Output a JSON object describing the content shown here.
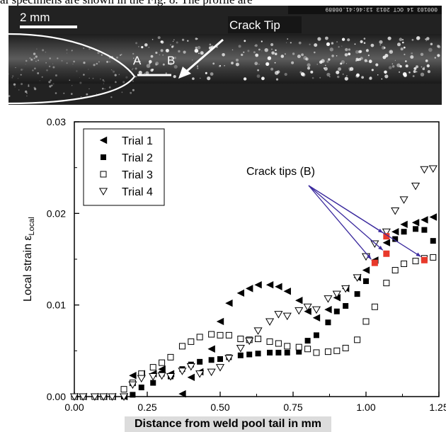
{
  "caption_fragment": "al specimens are shown in the Fig. 8.  The profile are",
  "micrograph": {
    "scale_bar_label": "2 mm",
    "crack_tip_label": "Crack Tip",
    "marker_a": "A",
    "marker_b": "B",
    "timestamp": "000103  14 OCT 2013  13:46:41.00889"
  },
  "chart_data": {
    "type": "scatter",
    "xlabel": "Distance from weld pool tail in mm",
    "ylabel": "Local strain ε",
    "ylabel_sub": "Local",
    "xlim": [
      0,
      1.25
    ],
    "ylim": [
      0,
      0.03
    ],
    "x_ticks": [
      "0.00",
      "0.25",
      "0.50",
      "0.75",
      "1.00",
      "1.25"
    ],
    "y_ticks": [
      "0.00",
      "0.01",
      "0.02",
      "0.03"
    ],
    "legend_position": "top-left",
    "annotation": "Crack tips (B)",
    "annotation_color": "#3b2a9e",
    "highlight_color": "#e8392b",
    "series": [
      {
        "name": "Trial 1",
        "marker": "triangle-left",
        "points": [
          [
            0.0,
            0.0
          ],
          [
            0.03,
            0.0
          ],
          [
            0.07,
            0.0
          ],
          [
            0.1,
            0.0
          ],
          [
            0.13,
            0.0
          ],
          [
            0.17,
            0.0
          ],
          [
            0.2,
            0.0023
          ],
          [
            0.23,
            0.0025
          ],
          [
            0.27,
            0.0025
          ],
          [
            0.3,
            0.003
          ],
          [
            0.33,
            0.0025
          ],
          [
            0.37,
            0.0003
          ],
          [
            0.4,
            0.0021
          ],
          [
            0.43,
            0.0027
          ],
          [
            0.47,
            0.0052
          ],
          [
            0.5,
            0.0082
          ],
          [
            0.53,
            0.0102
          ],
          [
            0.57,
            0.0113
          ],
          [
            0.6,
            0.0118
          ],
          [
            0.63,
            0.0122
          ],
          [
            0.67,
            0.0122
          ],
          [
            0.7,
            0.012
          ],
          [
            0.73,
            0.0115
          ],
          [
            0.77,
            0.0105
          ],
          [
            0.8,
            0.0093
          ],
          [
            0.83,
            0.0086
          ],
          [
            0.87,
            0.0095
          ],
          [
            0.9,
            0.0108
          ],
          [
            0.93,
            0.0118
          ],
          [
            0.97,
            0.013
          ],
          [
            1.0,
            0.0138
          ],
          [
            1.03,
            0.0149
          ],
          [
            1.07,
            0.0168
          ],
          [
            1.1,
            0.018
          ],
          [
            1.13,
            0.0188
          ],
          [
            1.17,
            0.019
          ],
          [
            1.2,
            0.0193
          ],
          [
            1.23,
            0.0196
          ]
        ]
      },
      {
        "name": "Trial 2",
        "marker": "square-filled",
        "points": [
          [
            0.0,
            0.0
          ],
          [
            0.03,
            0.0
          ],
          [
            0.07,
            0.0
          ],
          [
            0.1,
            0.0
          ],
          [
            0.13,
            0.0
          ],
          [
            0.17,
            0.0
          ],
          [
            0.2,
            0.0002
          ],
          [
            0.23,
            0.001
          ],
          [
            0.27,
            0.0015
          ],
          [
            0.3,
            0.0025
          ],
          [
            0.33,
            0.0022
          ],
          [
            0.37,
            0.003
          ],
          [
            0.4,
            0.0035
          ],
          [
            0.43,
            0.0038
          ],
          [
            0.47,
            0.004
          ],
          [
            0.5,
            0.0041
          ],
          [
            0.53,
            0.0043
          ],
          [
            0.57,
            0.0045
          ],
          [
            0.6,
            0.0046
          ],
          [
            0.63,
            0.0047
          ],
          [
            0.67,
            0.0048
          ],
          [
            0.7,
            0.0048
          ],
          [
            0.73,
            0.0048
          ],
          [
            0.77,
            0.0049
          ],
          [
            0.8,
            0.0061
          ],
          [
            0.83,
            0.0067
          ],
          [
            0.87,
            0.0081
          ],
          [
            0.9,
            0.0093
          ],
          [
            0.93,
            0.0099
          ],
          [
            0.97,
            0.0112
          ],
          [
            1.0,
            0.0126
          ],
          [
            1.03,
            0.0146
          ],
          [
            1.07,
            0.0156
          ],
          [
            1.1,
            0.0172
          ],
          [
            1.13,
            0.018
          ],
          [
            1.17,
            0.0183
          ],
          [
            1.2,
            0.0182
          ],
          [
            1.23,
            0.017
          ]
        ]
      },
      {
        "name": "Trial 3",
        "marker": "square-open",
        "points": [
          [
            0.0,
            0.0
          ],
          [
            0.03,
            0.0
          ],
          [
            0.07,
            0.0
          ],
          [
            0.1,
            0.0
          ],
          [
            0.13,
            0.0
          ],
          [
            0.17,
            0.0008
          ],
          [
            0.2,
            0.0015
          ],
          [
            0.23,
            0.0025
          ],
          [
            0.27,
            0.0032
          ],
          [
            0.3,
            0.0037
          ],
          [
            0.33,
            0.0043
          ],
          [
            0.37,
            0.0055
          ],
          [
            0.4,
            0.006
          ],
          [
            0.43,
            0.0065
          ],
          [
            0.47,
            0.0068
          ],
          [
            0.5,
            0.0067
          ],
          [
            0.53,
            0.0067
          ],
          [
            0.57,
            0.0063
          ],
          [
            0.6,
            0.0062
          ],
          [
            0.63,
            0.0063
          ],
          [
            0.67,
            0.006
          ],
          [
            0.7,
            0.0058
          ],
          [
            0.73,
            0.0055
          ],
          [
            0.77,
            0.0054
          ],
          [
            0.8,
            0.0052
          ],
          [
            0.83,
            0.0048
          ],
          [
            0.87,
            0.0049
          ],
          [
            0.9,
            0.005
          ],
          [
            0.93,
            0.0053
          ],
          [
            0.97,
            0.0062
          ],
          [
            1.0,
            0.0082
          ],
          [
            1.03,
            0.0098
          ],
          [
            1.07,
            0.0124
          ],
          [
            1.1,
            0.0138
          ],
          [
            1.13,
            0.0145
          ],
          [
            1.17,
            0.0148
          ],
          [
            1.2,
            0.0151
          ],
          [
            1.23,
            0.0152
          ]
        ]
      },
      {
        "name": "Trial 4",
        "marker": "triangle-down-open",
        "points": [
          [
            0.0,
            0.0
          ],
          [
            0.03,
            0.0
          ],
          [
            0.07,
            0.0
          ],
          [
            0.1,
            0.0
          ],
          [
            0.13,
            0.0
          ],
          [
            0.17,
            0.0
          ],
          [
            0.2,
            0.0013
          ],
          [
            0.23,
            0.002
          ],
          [
            0.27,
            0.0022
          ],
          [
            0.3,
            0.0023
          ],
          [
            0.33,
            0.0022
          ],
          [
            0.37,
            0.0028
          ],
          [
            0.4,
            0.0033
          ],
          [
            0.43,
            0.0025
          ],
          [
            0.47,
            0.0027
          ],
          [
            0.5,
            0.0032
          ],
          [
            0.53,
            0.0042
          ],
          [
            0.57,
            0.0053
          ],
          [
            0.6,
            0.0061
          ],
          [
            0.63,
            0.0072
          ],
          [
            0.67,
            0.0082
          ],
          [
            0.7,
            0.009
          ],
          [
            0.73,
            0.0088
          ],
          [
            0.77,
            0.0094
          ],
          [
            0.8,
            0.0098
          ],
          [
            0.83,
            0.0095
          ],
          [
            0.87,
            0.0107
          ],
          [
            0.9,
            0.0112
          ],
          [
            0.93,
            0.0118
          ],
          [
            0.97,
            0.013
          ],
          [
            1.0,
            0.0153
          ],
          [
            1.03,
            0.0167
          ],
          [
            1.07,
            0.018
          ],
          [
            1.1,
            0.0203
          ],
          [
            1.13,
            0.0215
          ],
          [
            1.17,
            0.023
          ],
          [
            1.2,
            0.0248
          ],
          [
            1.23,
            0.0249
          ]
        ]
      }
    ],
    "highlighted_points": [
      [
        1.03,
        0.0146
      ],
      [
        1.07,
        0.0156
      ],
      [
        1.07,
        0.0175
      ],
      [
        1.2,
        0.0149
      ]
    ]
  }
}
